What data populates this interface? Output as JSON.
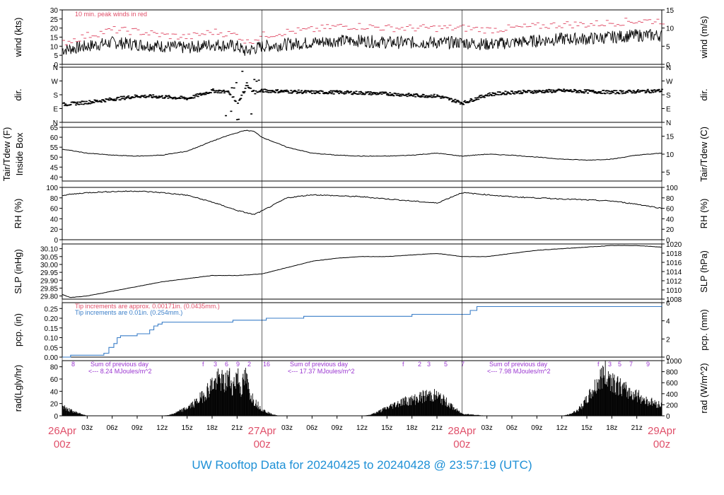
{
  "title": "UW Rooftop Data for 20240425  to  20240428 @ 23:57:19  (UTC)",
  "colors": {
    "pink": "#e0506a",
    "blue": "#3a7ec8",
    "purple": "#9a36d0",
    "title_blue": "#1e90d6",
    "ink": "#000000"
  },
  "chart_data": {
    "type": "line",
    "x_unit": "hours since 26Apr 00z",
    "x_range": [
      0,
      72
    ],
    "time_ticks": [
      "03z",
      "06z",
      "09z",
      "12z",
      "15z",
      "18z",
      "21z",
      "03z",
      "06z",
      "09z",
      "12z",
      "15z",
      "18z",
      "21z",
      "03z",
      "06z",
      "09z",
      "12z",
      "15z",
      "18z",
      "21z"
    ],
    "day_labels": [
      {
        "date": "26Apr",
        "time": "00z"
      },
      {
        "date": "27Apr",
        "time": "00z"
      },
      {
        "date": "28Apr",
        "time": "00z"
      },
      {
        "date": "29Apr",
        "time": "00z"
      }
    ],
    "panels": [
      {
        "id": "wind",
        "left_label": "wind (kts)",
        "right_label": "wind (m/s)",
        "left_ticks": [
          "0",
          "5",
          "10",
          "15",
          "20",
          "25",
          "30"
        ],
        "right_ticks": [
          "0",
          "5",
          "10",
          "15"
        ],
        "ylim": [
          0,
          30
        ],
        "annotation": "10 min. peak winds in red",
        "series": [
          {
            "kind": "mean",
            "x": [
              0,
              3,
              6,
              9,
              12,
              15,
              18,
              21,
              22,
              24,
              27,
              30,
              33,
              36,
              39,
              42,
              45,
              48,
              51,
              54,
              57,
              60,
              63,
              66,
              69,
              72
            ],
            "y": [
              8,
              10,
              12,
              11,
              10,
              9,
              11,
              10,
              7,
              10,
              11,
              12,
              13,
              13,
              12,
              12,
              12,
              12,
              11,
              12,
              13,
              14,
              14,
              15,
              16,
              16
            ]
          },
          {
            "kind": "peak",
            "name": "10 min. peak winds",
            "x": [
              0,
              3,
              6,
              9,
              12,
              15,
              18,
              21,
              22,
              24,
              27,
              30,
              33,
              36,
              39,
              42,
              45,
              48,
              51,
              54,
              57,
              60,
              63,
              66,
              69,
              72
            ],
            "y": [
              12,
              16,
              19,
              18,
              16,
              15,
              18,
              16,
              12,
              16,
              18,
              19,
              21,
              21,
              20,
              20,
              20,
              20,
              19,
              20,
              21,
              22,
              22,
              23,
              24,
              24
            ]
          }
        ]
      },
      {
        "id": "dir",
        "left_label": "dir.",
        "right_label": "dir.",
        "left_ticks": [
          "N",
          "E",
          "S",
          "W",
          "N"
        ],
        "right_ticks": [
          "N",
          "E",
          "S",
          "W",
          "N"
        ],
        "ylim": [
          0,
          360
        ],
        "series": [
          {
            "kind": "points",
            "x": [
              0,
              3,
              6,
              9,
              12,
              15,
              18,
              20,
              21,
              22,
              23,
              24,
              27,
              30,
              33,
              36,
              39,
              42,
              45,
              48,
              51,
              54,
              57,
              60,
              63,
              66,
              69,
              72
            ],
            "y": [
              120,
              135,
              155,
              175,
              170,
              160,
              210,
              200,
              120,
              240,
              200,
              210,
              205,
              200,
              200,
              195,
              190,
              180,
              175,
              130,
              185,
              200,
              205,
              210,
              205,
              200,
              205,
              210
            ]
          }
        ]
      },
      {
        "id": "temp",
        "left_label": "Tair/Tdew (F)",
        "left_label2": "Inside Box",
        "right_label": "Tair/Tdew (C)",
        "left_ticks": [
          "40",
          "45",
          "50",
          "55",
          "60",
          "65"
        ],
        "right_ticks": [
          "5",
          "10",
          "15"
        ],
        "ylim": [
          38,
          65
        ],
        "series": [
          {
            "kind": "line",
            "name": "Tair",
            "x": [
              0,
              3,
              6,
              9,
              12,
              15,
              18,
              20,
              22,
              23,
              24,
              27,
              30,
              33,
              36,
              39,
              42,
              45,
              48,
              51,
              54,
              57,
              60,
              63,
              66,
              69,
              72
            ],
            "y": [
              54,
              52,
              51,
              50.5,
              51,
              53,
              58,
              61,
              63.5,
              63,
              60,
              55,
              52,
              51,
              50.5,
              50.5,
              51,
              52,
              50.5,
              51.5,
              51,
              50,
              49,
              48.5,
              49,
              51,
              52
            ]
          }
        ]
      },
      {
        "id": "rh",
        "left_label": "RH (%)",
        "right_label": "RH (%)",
        "left_ticks": [
          "0",
          "20",
          "40",
          "60",
          "80",
          "100"
        ],
        "right_ticks": [
          "0",
          "20",
          "40",
          "60",
          "80",
          "100"
        ],
        "ylim": [
          0,
          100
        ],
        "series": [
          {
            "kind": "line",
            "name": "RH",
            "x": [
              0,
              3,
              6,
              9,
              12,
              15,
              18,
              21,
              23,
              24,
              27,
              30,
              33,
              36,
              39,
              42,
              45,
              48,
              51,
              54,
              57,
              60,
              63,
              66,
              69,
              72
            ],
            "y": [
              85,
              90,
              92,
              93,
              90,
              85,
              72,
              56,
              48,
              55,
              80,
              86,
              84,
              82,
              78,
              74,
              70,
              90,
              86,
              82,
              80,
              78,
              76,
              74,
              68,
              60
            ]
          }
        ]
      },
      {
        "id": "slp",
        "left_label": "SLP (inHg)",
        "right_label": "SLP (hPa)",
        "left_ticks": [
          "29.80",
          "29.85",
          "29.90",
          "29.95",
          "30.00",
          "30.05",
          "30.10"
        ],
        "right_ticks": [
          "1008",
          "1010",
          "1012",
          "1014",
          "1016",
          "1018",
          "1020"
        ],
        "ylim": [
          29.78,
          30.13
        ],
        "series": [
          {
            "kind": "line",
            "name": "SLP",
            "x": [
              0,
              1,
              3,
              6,
              9,
              12,
              15,
              18,
              21,
              24,
              27,
              30,
              33,
              36,
              39,
              42,
              45,
              48,
              51,
              54,
              57,
              60,
              63,
              66,
              69,
              72
            ],
            "y": [
              29.81,
              29.79,
              29.8,
              29.83,
              29.86,
              29.89,
              29.91,
              29.93,
              29.93,
              29.94,
              29.98,
              30.02,
              30.04,
              30.05,
              30.05,
              30.06,
              30.07,
              30.05,
              30.05,
              30.07,
              30.09,
              30.1,
              30.11,
              30.12,
              30.12,
              30.11
            ]
          }
        ]
      },
      {
        "id": "pcp",
        "left_label": "pcp. (in)",
        "right_label": "pcp. (mm)",
        "left_ticks": [
          "0.00",
          "0.05",
          "0.10",
          "0.15",
          "0.20",
          "0.25"
        ],
        "right_ticks": [
          "0",
          "2",
          "4",
          "6"
        ],
        "ylim": [
          0,
          0.28
        ],
        "annotations": [
          "Tip increments are approx. 0.00171in. (0.0435mm.)",
          "Tip increments are 0.01in. (0.254mm.)"
        ],
        "series": [
          {
            "kind": "step",
            "name": "precip",
            "x": [
              0,
              1,
              3,
              5,
              5.6,
              6.2,
              6.6,
              7,
              9,
              10.5,
              11,
              11.5,
              12,
              20.5,
              24.5,
              29,
              42,
              49,
              49.8,
              72
            ],
            "y": [
              0,
              0.01,
              0.01,
              0.02,
              0.05,
              0.07,
              0.1,
              0.11,
              0.12,
              0.14,
              0.16,
              0.17,
              0.18,
              0.19,
              0.2,
              0.21,
              0.22,
              0.24,
              0.26,
              0.27
            ]
          }
        ]
      },
      {
        "id": "rad",
        "left_label": "rad(Lgly/hr)",
        "right_label": "rad (W/m^2)",
        "left_ticks": [
          "0",
          "20",
          "40",
          "60",
          "80"
        ],
        "right_ticks": [
          "0",
          "200",
          "400",
          "600",
          "800",
          "1000"
        ],
        "ylim": [
          0,
          90
        ],
        "day_summaries": [
          {
            "title": "Sum of previous day",
            "value": "<--- 8.24 MJoules/m^2"
          },
          {
            "title": "Sum of previous day",
            "value": "<--- 17.37 MJoules/m^2"
          },
          {
            "title": "Sum of previous day",
            "value": "<--- 7.98 MJoules/m^2"
          }
        ],
        "hour_marks": [
          "8",
          "f",
          "3",
          "6",
          "9",
          "2",
          "16",
          "f",
          "2",
          "3",
          "5",
          "7",
          "f",
          "3",
          "5",
          "7",
          "9"
        ],
        "series": [
          {
            "kind": "area",
            "name": "solar radiation",
            "x": [
              0,
              1,
              2,
              3,
              12,
              13,
              14,
              15,
              16,
              17,
              18,
              19,
              19.5,
              20,
              20.5,
              21,
              21.5,
              22,
              22.5,
              23,
              24,
              25,
              26,
              27,
              36,
              37,
              38,
              39,
              40,
              41,
              42,
              43,
              44,
              45,
              46,
              47,
              48,
              51,
              60,
              61,
              62,
              63,
              64,
              65,
              66,
              67,
              68,
              69,
              70,
              71,
              72
            ],
            "y": [
              18,
              10,
              5,
              0,
              0,
              2,
              8,
              15,
              25,
              40,
              60,
              70,
              60,
              75,
              55,
              80,
              50,
              75,
              45,
              30,
              12,
              4,
              0,
              0,
              0,
              2,
              8,
              15,
              22,
              28,
              30,
              35,
              40,
              38,
              28,
              15,
              4,
              0,
              0,
              3,
              12,
              30,
              55,
              80,
              70,
              55,
              45,
              40,
              30,
              25,
              20
            ]
          }
        ]
      }
    ]
  }
}
